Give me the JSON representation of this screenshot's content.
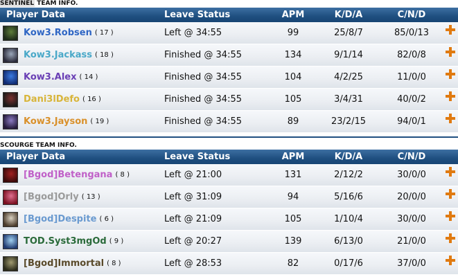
{
  "sentinel": {
    "title_prefix": "SENTINEL",
    "title_suffix": " TEAM INFO.",
    "headers": {
      "player": "Player Data",
      "leave": "Leave Status",
      "apm": "APM",
      "kda": "K/D/A",
      "cnd": "C/N/D"
    },
    "players": [
      {
        "name": "Kow3.Robsen",
        "level": "( 17 )",
        "leave": "Left @ 34:55",
        "apm": "99",
        "kda": "25/8/7",
        "cnd": "85/0/13",
        "color": "#2f66c4",
        "avatar_colors": [
          "#1e2b1a",
          "#5d7d3a"
        ]
      },
      {
        "name": "Kow3.Jackass",
        "level": "( 18 )",
        "leave": "Finished @ 34:55",
        "apm": "134",
        "kda": "9/1/14",
        "cnd": "82/0/8",
        "color": "#49a8c8",
        "avatar_colors": [
          "#2a2a3a",
          "#9aa6b8"
        ]
      },
      {
        "name": "Kow3.Alex",
        "level": "( 14 )",
        "leave": "Finished @ 34:55",
        "apm": "104",
        "kda": "4/2/25",
        "cnd": "11/0/0",
        "color": "#6a3fb5",
        "avatar_colors": [
          "#102a70",
          "#3a7ae0"
        ]
      },
      {
        "name": "Dani3lDefo",
        "level": "( 16 )",
        "leave": "Finished @ 34:55",
        "apm": "105",
        "kda": "3/4/31",
        "cnd": "40/0/2",
        "color": "#d8b53a",
        "avatar_colors": [
          "#1a1a1a",
          "#7a3030"
        ]
      },
      {
        "name": "Kow3.Jayson",
        "level": "( 19 )",
        "leave": "Finished @ 34:55",
        "apm": "89",
        "kda": "23/2/15",
        "cnd": "94/0/1",
        "color": "#d9902a",
        "avatar_colors": [
          "#241a3a",
          "#8a7ac0"
        ]
      }
    ]
  },
  "scourge": {
    "title": "SCOURGE TEAM INFO.",
    "headers": {
      "player": "Player Data",
      "leave": "Leave Status",
      "apm": "APM",
      "kda": "K/D/A",
      "cnd": "C/N/D"
    },
    "players": [
      {
        "name": "[Bgod]Betengana",
        "level": "( 8 )",
        "leave": "Left @ 21:00",
        "apm": "131",
        "kda": "2/12/2",
        "cnd": "30/0/0",
        "color": "#c060c8",
        "avatar_colors": [
          "#3a0a0a",
          "#a02020"
        ]
      },
      {
        "name": "[Bgod]Orly",
        "level": "( 13 )",
        "leave": "Left @ 31:09",
        "apm": "94",
        "kda": "5/16/6",
        "cnd": "20/0/0",
        "color": "#9a9a9a",
        "avatar_colors": [
          "#7a1020",
          "#e07090"
        ]
      },
      {
        "name": "[Bgod]Despite",
        "level": "( 6 )",
        "leave": "Left @ 21:09",
        "apm": "105",
        "kda": "1/10/4",
        "cnd": "30/0/0",
        "color": "#6a9ad0",
        "avatar_colors": [
          "#4a3a2a",
          "#d8d0c0"
        ]
      },
      {
        "name": "TOD.Syst3mgOd",
        "level": "( 9 )",
        "leave": "Left @ 20:27",
        "apm": "139",
        "kda": "6/13/0",
        "cnd": "21/0/0",
        "color": "#2a6a3a",
        "avatar_colors": [
          "#203a70",
          "#a0d0f0"
        ]
      },
      {
        "name": "[Bgod]Immortal",
        "level": "( 8 )",
        "leave": "Left @ 28:53",
        "apm": "82",
        "kda": "0/17/6",
        "cnd": "37/0/0",
        "color": "#5a4a2a",
        "avatar_colors": [
          "#2a2a1a",
          "#a09a70"
        ]
      }
    ]
  },
  "icons": {
    "avatar": "hero-portrait-icon",
    "add": "plus-icon"
  }
}
